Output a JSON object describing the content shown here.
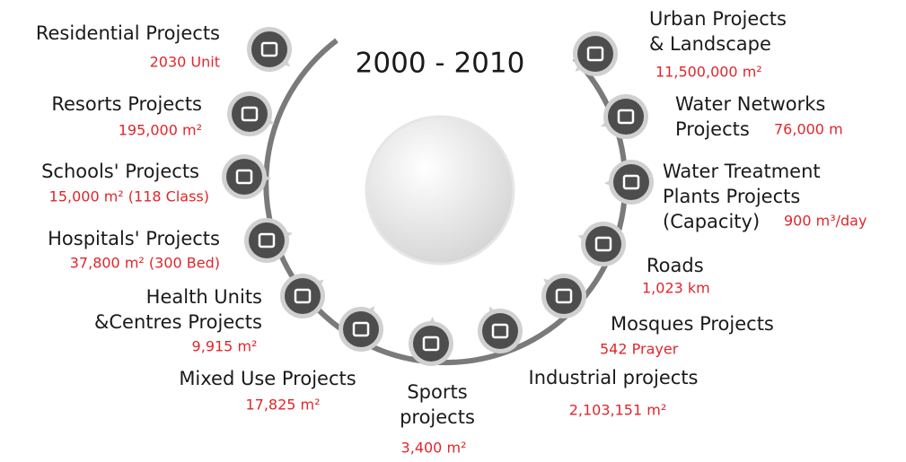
{
  "title": "2000 - 2010",
  "items": [
    {
      "label": [
        "Residential Projects"
      ],
      "value": "2030 Unit"
    },
    {
      "label": [
        "Resorts Projects"
      ],
      "value": "195,000 m²"
    },
    {
      "label": [
        "Schools' Projects"
      ],
      "value": "15,000 m² (118 Class)"
    },
    {
      "label": [
        "Hospitals' Projects"
      ],
      "value": "37,800 m² (300 Bed)"
    },
    {
      "label": [
        "Health Units",
        "&Centres Projects"
      ],
      "value": "9,915 m²"
    },
    {
      "label": [
        "Mixed Use Projects"
      ],
      "value": "17,825 m²"
    },
    {
      "label": [
        "Sports",
        "projects"
      ],
      "value": "3,400 m²"
    },
    {
      "label": [
        "Industrial projects"
      ],
      "value": "2,103,151 m²"
    },
    {
      "label": [
        "Mosques Projects"
      ],
      "value": "542 Prayer"
    },
    {
      "label": [
        "Roads"
      ],
      "value": "1,023 km"
    },
    {
      "label": [
        "Water Treatment",
        "Plants Projects",
        "(Capacity)"
      ],
      "value": "900 m³/day"
    },
    {
      "label": [
        "Water Networks",
        "Projects"
      ],
      "value": "76,000 m"
    },
    {
      "label": [
        "Urban Projects",
        "& Landscape"
      ],
      "value": "11,500,000 m²"
    }
  ]
}
